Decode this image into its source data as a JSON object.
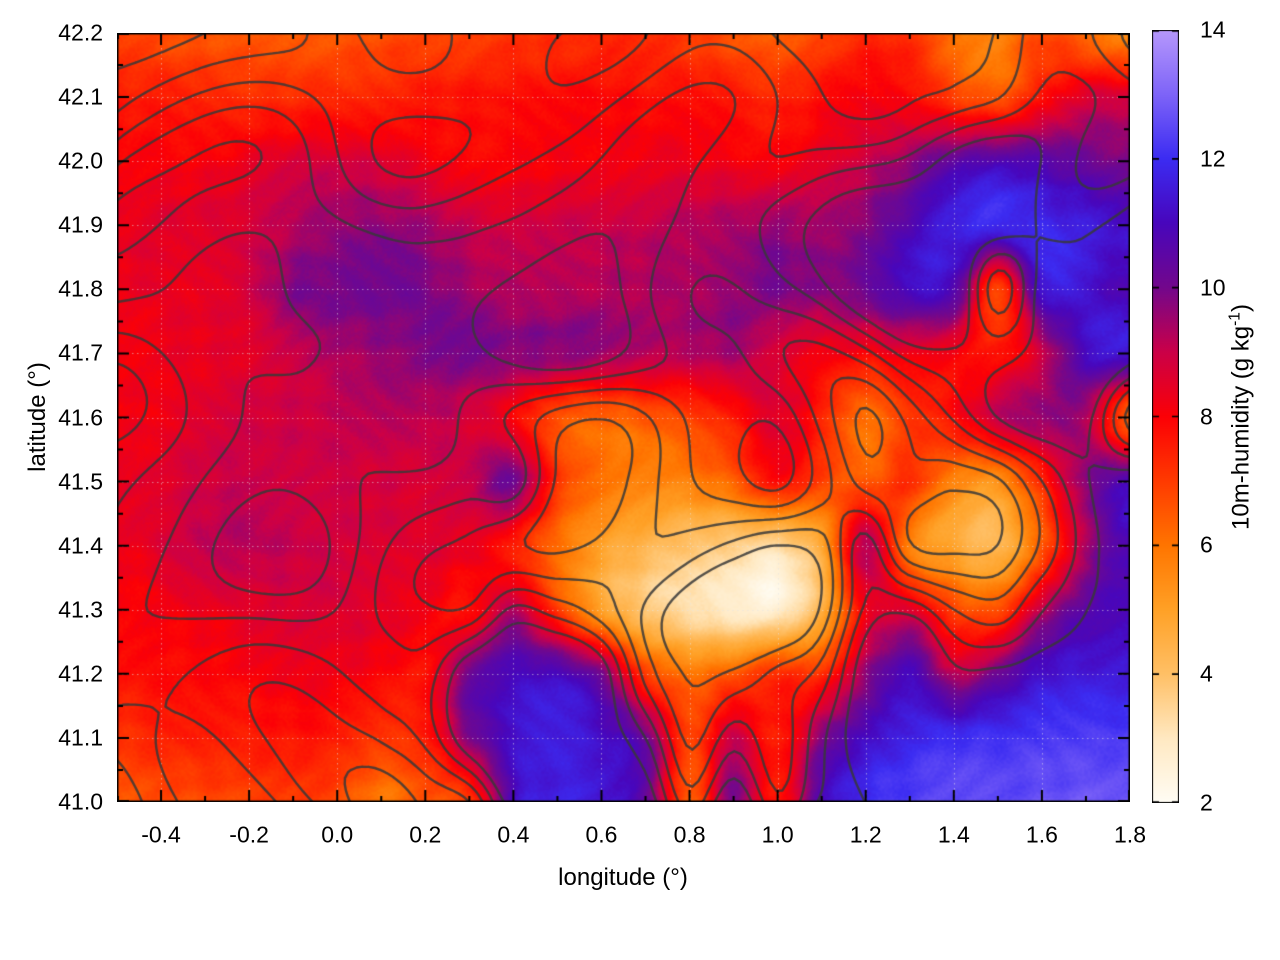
{
  "chart_data": {
    "type": "heatmap",
    "xlabel": "longitude (°)",
    "ylabel": "latitude (°)",
    "x_range": [
      -0.5,
      1.8
    ],
    "y_range": [
      41.0,
      42.2
    ],
    "x_ticks": {
      "values": [
        -0.4,
        -0.2,
        0.0,
        0.2,
        0.4,
        0.6,
        0.8,
        1.0,
        1.2,
        1.4,
        1.6,
        1.8
      ],
      "labels": [
        "-0.4",
        "-0.2",
        "0.0",
        "0.2",
        "0.4",
        "0.6",
        "0.8",
        "1.0",
        "1.2",
        "1.4",
        "1.6",
        "1.8"
      ],
      "minor_values": [
        -0.5,
        -0.3,
        -0.1,
        0.1,
        0.3,
        0.5,
        0.7,
        0.9,
        1.1,
        1.3,
        1.5,
        1.7
      ]
    },
    "y_ticks": {
      "values": [
        41.0,
        41.1,
        41.2,
        41.3,
        41.4,
        41.5,
        41.6,
        41.7,
        41.8,
        41.9,
        42.0,
        42.1,
        42.2
      ],
      "labels": [
        "41.0",
        "41.1",
        "41.2",
        "41.3",
        "41.4",
        "41.5",
        "41.6",
        "41.7",
        "41.8",
        "41.9",
        "42.0",
        "42.1",
        "42.2"
      ],
      "minor_values": [
        41.05,
        41.15,
        41.25,
        41.35,
        41.45,
        41.55,
        41.65,
        41.75,
        41.85,
        41.95,
        42.05,
        42.15
      ]
    },
    "grid_lines": {
      "style": "dotted",
      "color": "rgba(228,228,228,0.55)"
    },
    "colorbar": {
      "label_main": "10m-humidity (g kg",
      "label_sup": "-1",
      "label_close": ")",
      "tick_values": [
        2,
        4,
        6,
        8,
        10,
        12,
        14
      ],
      "tick_labels": [
        "2",
        "4",
        "6",
        "8",
        "10",
        "12",
        "14"
      ],
      "range": [
        2,
        14
      ]
    },
    "palette": [
      {
        "v": 2,
        "c": "#fffdf5"
      },
      {
        "v": 3,
        "c": "#ffe9c2"
      },
      {
        "v": 4,
        "c": "#ffc066"
      },
      {
        "v": 5,
        "c": "#ffa126"
      },
      {
        "v": 6,
        "c": "#ff7500"
      },
      {
        "v": 7,
        "c": "#ff3a00"
      },
      {
        "v": 8,
        "c": "#fc0006"
      },
      {
        "v": 9,
        "c": "#cb0048"
      },
      {
        "v": 10,
        "c": "#73078c"
      },
      {
        "v": 11,
        "c": "#4806bc"
      },
      {
        "v": 12,
        "c": "#3c2cf2"
      },
      {
        "v": 13,
        "c": "#7e64f8"
      },
      {
        "v": 14,
        "c": "#b698fc"
      }
    ],
    "humidity_grid": {
      "lon_min": -0.5,
      "lon_max": 1.8,
      "lat_min": 41.0,
      "lat_max": 42.2,
      "units": "g kg^-1",
      "note": "rows ordered from lat 42.2 (top) to 41.0 (bottom), cols lon -0.5 to 1.8 step 0.1",
      "values": [
        [
          6.8,
          6.7,
          6.6,
          6.5,
          6.5,
          6.6,
          6.7,
          6.9,
          7.0,
          7.1,
          7.2,
          7.3,
          7.2,
          7.0,
          6.6,
          6.3,
          6.8,
          7.4,
          7.2,
          6.2,
          5.8,
          6.8,
          6.2,
          5.5
        ],
        [
          7.6,
          7.5,
          7.4,
          7.3,
          7.3,
          7.4,
          7.5,
          7.6,
          7.7,
          7.8,
          7.8,
          7.9,
          7.8,
          7.7,
          7.6,
          7.4,
          7.8,
          8.2,
          8.0,
          7.0,
          6.6,
          7.8,
          8.6,
          8.8
        ],
        [
          8.0,
          8.0,
          8.1,
          8.3,
          8.6,
          8.8,
          8.6,
          8.2,
          8.0,
          8.0,
          8.1,
          8.2,
          8.3,
          8.3,
          8.2,
          8.0,
          8.4,
          9.0,
          9.6,
          10.4,
          10.8,
          10.6,
          10.2,
          10.0
        ],
        [
          8.4,
          8.5,
          8.6,
          8.8,
          9.2,
          9.6,
          9.7,
          9.4,
          9.0,
          8.8,
          8.9,
          9.0,
          9.1,
          9.2,
          9.4,
          9.6,
          9.4,
          9.9,
          10.8,
          11.6,
          11.9,
          11.8,
          11.5,
          11.2
        ],
        [
          8.3,
          8.4,
          8.5,
          8.8,
          9.8,
          10.0,
          10.0,
          9.9,
          9.5,
          9.2,
          9.2,
          9.3,
          9.3,
          9.4,
          9.7,
          9.9,
          9.7,
          10.2,
          11.0,
          10.8,
          7.0,
          11.2,
          11.3,
          10.8
        ],
        [
          8.2,
          8.3,
          8.4,
          8.6,
          9.0,
          9.3,
          9.6,
          9.8,
          9.9,
          9.8,
          9.7,
          9.5,
          9.3,
          9.2,
          9.4,
          8.8,
          8.2,
          8.0,
          8.4,
          8.0,
          7.6,
          9.0,
          11.0,
          11.4
        ],
        [
          8.1,
          8.3,
          8.6,
          8.8,
          8.9,
          9.0,
          9.1,
          9.2,
          8.8,
          8.0,
          6.8,
          6.3,
          6.5,
          7.0,
          7.6,
          8.6,
          7.5,
          6.0,
          7.0,
          7.8,
          9.0,
          9.6,
          9.4,
          6.2
        ],
        [
          8.3,
          8.6,
          8.9,
          9.0,
          9.0,
          8.9,
          8.8,
          8.8,
          9.0,
          10.0,
          7.2,
          6.0,
          5.6,
          5.8,
          6.4,
          7.8,
          7.0,
          6.5,
          7.2,
          5.8,
          5.4,
          7.4,
          9.8,
          10.8
        ],
        [
          8.2,
          8.6,
          9.0,
          9.2,
          9.0,
          8.8,
          8.7,
          8.6,
          8.4,
          7.6,
          6.2,
          5.0,
          4.4,
          3.9,
          3.6,
          3.4,
          4.8,
          9.2,
          5.8,
          4.8,
          4.3,
          6.6,
          9.4,
          11.0
        ],
        [
          7.9,
          8.1,
          8.3,
          8.5,
          8.7,
          8.7,
          8.5,
          8.2,
          7.8,
          9.2,
          7.0,
          5.0,
          3.8,
          3.2,
          2.8,
          2.7,
          4.5,
          8.2,
          8.6,
          7.0,
          6.8,
          9.2,
          10.6,
          11.0
        ],
        [
          7.7,
          7.8,
          7.9,
          8.0,
          8.2,
          8.2,
          8.0,
          7.8,
          10.2,
          11.0,
          11.0,
          10.0,
          7.0,
          6.0,
          6.5,
          7.2,
          7.2,
          9.6,
          11.0,
          9.2,
          10.2,
          11.3,
          11.5,
          11.6
        ],
        [
          7.2,
          7.4,
          7.6,
          7.6,
          7.7,
          7.6,
          7.2,
          7.5,
          9.8,
          11.2,
          11.5,
          11.2,
          10.2,
          6.8,
          9.0,
          7.5,
          9.8,
          11.2,
          11.8,
          12.0,
          12.1,
          12.2,
          12.2,
          12.3
        ],
        [
          6.6,
          6.7,
          6.8,
          6.9,
          6.9,
          6.8,
          5.9,
          6.5,
          7.0,
          11.0,
          11.6,
          11.5,
          10.5,
          6.4,
          10.0,
          7.6,
          10.8,
          12.0,
          12.3,
          12.4,
          12.5,
          12.6,
          12.7,
          12.8
        ]
      ]
    },
    "contours": {
      "levels": [
        0.5,
        1.5,
        2.5,
        3.5,
        4.5,
        5.5
      ],
      "color": "#383838",
      "width": 2.4
    },
    "border_color": "#000000"
  }
}
